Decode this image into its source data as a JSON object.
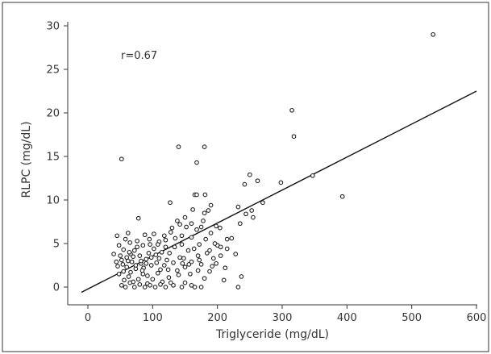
{
  "chart_data": {
    "type": "scatter",
    "title": "",
    "xlabel": "Triglyceride (mg/dL)",
    "ylabel": "RLPC (mg/dL)",
    "xlim": [
      -30,
      600
    ],
    "ylim": [
      -1.5,
      30
    ],
    "xticks": [
      "0",
      "100",
      "200",
      "300",
      "400",
      "500",
      "600"
    ],
    "yticks": [
      "0",
      "5",
      "10",
      "15",
      "20",
      "25",
      "30"
    ],
    "annotation": "r=0.67",
    "grid": false,
    "marker": "open-circle",
    "regression_line": {
      "x": [
        -10,
        600
      ],
      "y": [
        -0.6,
        22.5
      ]
    },
    "points": [
      [
        533,
        29.0
      ],
      [
        315,
        20.3
      ],
      [
        318,
        17.3
      ],
      [
        393,
        10.4
      ],
      [
        347,
        12.8
      ],
      [
        298,
        12.0
      ],
      [
        270,
        9.7
      ],
      [
        52,
        14.7
      ],
      [
        140,
        16.1
      ],
      [
        180,
        16.1
      ],
      [
        168,
        14.3
      ],
      [
        262,
        12.2
      ],
      [
        250,
        12.9
      ],
      [
        242,
        11.8
      ],
      [
        181,
        10.6
      ],
      [
        165,
        10.6
      ],
      [
        168,
        10.6
      ],
      [
        127,
        9.7
      ],
      [
        190,
        9.4
      ],
      [
        232,
        9.2
      ],
      [
        253,
        8.8
      ],
      [
        244,
        8.4
      ],
      [
        255,
        8.0
      ],
      [
        235,
        7.3
      ],
      [
        204,
        6.8
      ],
      [
        222,
        5.6
      ],
      [
        215,
        5.5
      ],
      [
        200,
        4.8
      ],
      [
        180,
        8.5
      ],
      [
        150,
        8.0
      ],
      [
        160,
        7.3
      ],
      [
        175,
        6.9
      ],
      [
        186,
        8.8
      ],
      [
        138,
        7.6
      ],
      [
        130,
        6.8
      ],
      [
        78,
        7.9
      ],
      [
        62,
        6.2
      ],
      [
        45,
        5.9
      ],
      [
        48,
        4.8
      ],
      [
        40,
        3.8
      ],
      [
        55,
        4.3
      ],
      [
        65,
        5.1
      ],
      [
        70,
        3.5
      ],
      [
        85,
        4.8
      ],
      [
        95,
        5.5
      ],
      [
        110,
        5.2
      ],
      [
        120,
        4.6
      ],
      [
        145,
        5.9
      ],
      [
        160,
        5.7
      ],
      [
        172,
        4.9
      ],
      [
        188,
        4.2
      ],
      [
        196,
        5.0
      ],
      [
        205,
        4.6
      ],
      [
        212,
        2.2
      ],
      [
        188,
        1.8
      ],
      [
        175,
        2.6
      ],
      [
        160,
        2.9
      ],
      [
        150,
        2.3
      ],
      [
        142,
        3.4
      ],
      [
        132,
        2.8
      ],
      [
        122,
        3.1
      ],
      [
        112,
        2.0
      ],
      [
        105,
        3.7
      ],
      [
        98,
        2.5
      ],
      [
        90,
        3.2
      ],
      [
        82,
        2.7
      ],
      [
        74,
        2.1
      ],
      [
        68,
        2.9
      ],
      [
        60,
        3.4
      ],
      [
        52,
        3.1
      ],
      [
        46,
        2.4
      ],
      [
        55,
        1.8
      ],
      [
        63,
        1.2
      ],
      [
        70,
        0.6
      ],
      [
        78,
        0.9
      ],
      [
        85,
        1.5
      ],
      [
        92,
        0.4
      ],
      [
        100,
        0.9
      ],
      [
        108,
        1.6
      ],
      [
        115,
        0.6
      ],
      [
        125,
        1.1
      ],
      [
        132,
        0.2
      ],
      [
        140,
        1.4
      ],
      [
        150,
        0.5
      ],
      [
        165,
        0.0
      ],
      [
        180,
        1.0
      ],
      [
        192,
        2.4
      ],
      [
        210,
        0.8
      ],
      [
        232,
        0.0
      ],
      [
        237,
        1.2
      ],
      [
        228,
        3.8
      ],
      [
        215,
        4.4
      ],
      [
        205,
        3.6
      ],
      [
        198,
        2.7
      ],
      [
        170,
        3.6
      ],
      [
        155,
        4.2
      ],
      [
        145,
        4.9
      ],
      [
        135,
        5.6
      ],
      [
        118,
        5.9
      ],
      [
        102,
        6.1
      ],
      [
        88,
        6.0
      ],
      [
        76,
        5.3
      ],
      [
        58,
        5.5
      ],
      [
        50,
        3.6
      ],
      [
        44,
        2.9
      ],
      [
        52,
        0.2
      ],
      [
        58,
        0.0
      ],
      [
        65,
        0.5
      ],
      [
        72,
        0.0
      ],
      [
        80,
        0.3
      ],
      [
        88,
        0.0
      ],
      [
        96,
        0.2
      ],
      [
        104,
        0.0
      ],
      [
        112,
        0.3
      ],
      [
        120,
        0.0
      ],
      [
        128,
        0.5
      ],
      [
        145,
        0.0
      ],
      [
        160,
        0.2
      ],
      [
        175,
        0.0
      ],
      [
        60,
        2.3
      ],
      [
        66,
        3.8
      ],
      [
        72,
        4.2
      ],
      [
        80,
        3.6
      ],
      [
        86,
        2.2
      ],
      [
        94,
        3.9
      ],
      [
        102,
        4.4
      ],
      [
        110,
        3.3
      ],
      [
        118,
        2.5
      ],
      [
        126,
        3.9
      ],
      [
        134,
        4.6
      ],
      [
        148,
        3.3
      ],
      [
        156,
        2.6
      ],
      [
        164,
        4.4
      ],
      [
        172,
        3.1
      ],
      [
        182,
        5.5
      ],
      [
        190,
        6.2
      ],
      [
        198,
        7.0
      ],
      [
        168,
        6.6
      ],
      [
        152,
        6.9
      ],
      [
        128,
        6.3
      ],
      [
        114,
        4.0
      ],
      [
        96,
        4.9
      ],
      [
        76,
        4.6
      ],
      [
        62,
        3.0
      ],
      [
        54,
        2.6
      ],
      [
        48,
        1.5
      ],
      [
        56,
        0.8
      ],
      [
        66,
        1.7
      ],
      [
        84,
        1.9
      ],
      [
        92,
        1.3
      ],
      [
        106,
        2.8
      ],
      [
        124,
        2.0
      ],
      [
        138,
        1.9
      ],
      [
        146,
        2.7
      ],
      [
        158,
        1.5
      ],
      [
        170,
        1.9
      ],
      [
        184,
        3.9
      ],
      [
        194,
        3.3
      ],
      [
        178,
        7.6
      ],
      [
        162,
        8.9
      ],
      [
        142,
        7.2
      ],
      [
        120,
        5.4
      ],
      [
        108,
        4.9
      ],
      [
        90,
        2.7
      ],
      [
        74,
        2.5
      ],
      [
        64,
        4.0
      ],
      [
        82,
        3.0
      ],
      [
        98,
        3.4
      ]
    ]
  },
  "colors": {
    "axis": "#333333",
    "marker": "#222222",
    "line": "#111111",
    "border": "#333333"
  }
}
